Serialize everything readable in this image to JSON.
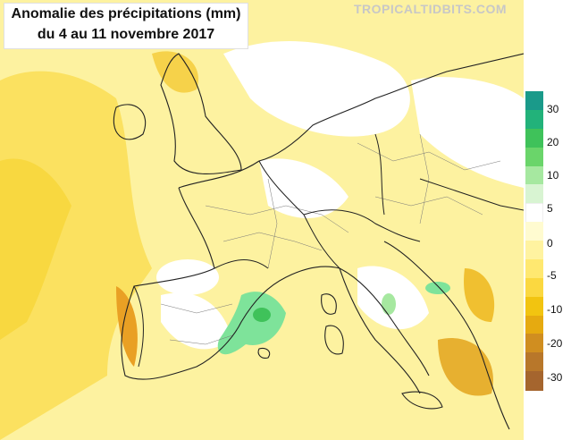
{
  "title": {
    "line1": "Anomalie des précipitations (mm)",
    "line2": "du 4 au 11 novembre 2017"
  },
  "watermark": "TROPICALTIDBITS.COM",
  "legend": {
    "tick_labels": [
      "30",
      "20",
      "10",
      "5",
      "0",
      "-5",
      "-10",
      "-20",
      "-30"
    ],
    "colors": [
      "#1a9a8a",
      "#22b27a",
      "#3fc25a",
      "#6ad56a",
      "#a6e8a0",
      "#d8f4d2",
      "#ffffff",
      "#fffbd0",
      "#fff3a0",
      "#ffe870",
      "#fbd840",
      "#f2c410",
      "#e6aa10",
      "#d08e20",
      "#b8772a",
      "#a5652e"
    ]
  },
  "map_data": {
    "region": "Western Europe",
    "colors": {
      "ocean_anomaly": "#fdf08a",
      "ocean_dark": "#f8d840",
      "ocean_brown": "#e9a024",
      "wet_green": "#7ee39a",
      "border": "#222222"
    }
  }
}
